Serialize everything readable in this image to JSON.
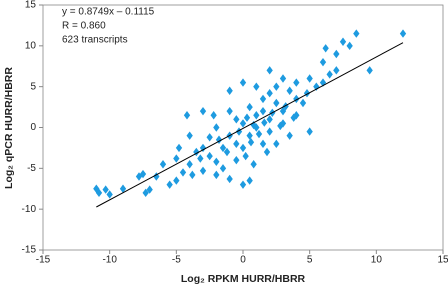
{
  "chart_data": {
    "type": "scatter",
    "x_label": "Log₂ RPKM HURR/HBRR",
    "y_label": "Log₂ qPCR HURR/HBRR",
    "annotations": [
      "y = 0.8749x – 0.1115",
      "R = 0.860",
      "623 transcripts"
    ],
    "color": "#1e9be0",
    "x": [
      -11,
      -10.8,
      -10.3,
      -10,
      -9,
      -7.8,
      -7.5,
      -7.3,
      -7,
      -6.5,
      -5.5,
      -5,
      -4.5,
      -5,
      -4,
      -3.5,
      -3,
      -2.5,
      -3,
      -2,
      -1.5,
      -1,
      0,
      0.5,
      -2,
      -3,
      -1,
      0,
      1,
      2,
      3,
      4,
      5,
      6,
      6.5,
      7,
      7.5,
      8,
      8.5,
      9.5,
      12,
      6.2,
      7,
      5,
      3.5,
      -4.2,
      -2.2,
      -4,
      4.5,
      3,
      2,
      1,
      1.5,
      2.5,
      0.5,
      -0.5,
      -1,
      -1.5,
      1,
      2,
      3,
      4,
      4,
      1.5,
      0.2,
      -0.5,
      0.8,
      1.8,
      2.5,
      3.5,
      2.5,
      1.5,
      0.5,
      -0.5,
      -1,
      0,
      0.3,
      0.8,
      1.2,
      1.6,
      2.2,
      2.8,
      3.2,
      3.8,
      0.6,
      -0.3,
      -1.8,
      -2.5,
      -3.2,
      4.8,
      5.5,
      6,
      -6,
      -4.8,
      -2,
      -3.8,
      -1.2,
      0,
      2
    ],
    "values": [
      -7.5,
      -8,
      -7.6,
      -8.2,
      -7.5,
      -6,
      -5.7,
      -8,
      -7.6,
      -6,
      -7,
      -6.5,
      -5.5,
      -3.8,
      -4.5,
      -3,
      -2.5,
      -3.5,
      -5.3,
      -5.8,
      -5,
      -6.3,
      -7,
      -6.5,
      0,
      2,
      4.5,
      5.5,
      5,
      7,
      6,
      5.5,
      6,
      8,
      6.5,
      9,
      10.5,
      10,
      11.5,
      7,
      11.5,
      9.7,
      7,
      -0.5,
      -1,
      1.5,
      1.5,
      -1,
      3,
      2,
      1,
      0,
      2,
      3,
      -1,
      -2,
      -1,
      -2.5,
      1.5,
      -0.5,
      0.5,
      3.5,
      1.5,
      -2,
      -3.5,
      -4,
      -4.5,
      -3,
      -2,
      4.5,
      5,
      3.5,
      2.5,
      1,
      2,
      0.5,
      1.2,
      0.3,
      -0.8,
      0.6,
      1.8,
      0.2,
      2.6,
      1.2,
      -1.8,
      -0.5,
      -1.5,
      -1.2,
      -3.8,
      4.2,
      5,
      5.5,
      -4.5,
      -2.5,
      -4.2,
      -5.8,
      -3,
      -2.5,
      4.2
    ],
    "trend_line": {
      "color": "#000000",
      "x": [
        -11,
        12
      ],
      "values": [
        -9.735,
        10.387
      ]
    },
    "xlim": [
      -15,
      15
    ],
    "ylim": [
      -15,
      15
    ],
    "xticks": [
      -15,
      -10,
      -5,
      0,
      5,
      10,
      15
    ],
    "yticks": [
      -15,
      -10,
      -5,
      0,
      5,
      10,
      15
    ]
  }
}
